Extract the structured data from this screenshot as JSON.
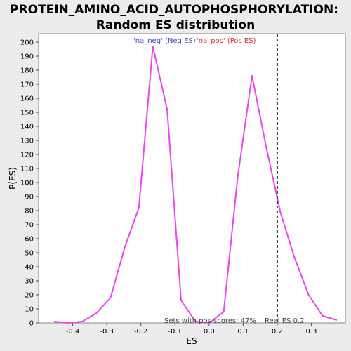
{
  "chart_data": {
    "type": "line",
    "title_line1": "PROTEIN_AMINO_ACID_AUTOPHOSPHORYLATION:",
    "title_line2": "Random ES distribution",
    "xlabel": "ES",
    "ylabel": "P(ES)",
    "xlim": [
      -0.5,
      0.4
    ],
    "ylim": [
      0,
      206
    ],
    "x_ticks": [
      -0.4,
      -0.3,
      -0.2,
      -0.1,
      0.0,
      0.1,
      0.2,
      0.3
    ],
    "x_tick_labels": [
      "-0.4",
      "-0.3",
      "-0.2",
      "-0.1",
      "0.0",
      "0.1",
      "0.2",
      "0.3"
    ],
    "y_ticks": [
      0,
      10,
      20,
      30,
      40,
      50,
      60,
      70,
      80,
      90,
      100,
      110,
      120,
      130,
      140,
      150,
      160,
      170,
      180,
      190,
      200
    ],
    "y_tick_labels": [
      "0",
      "10",
      "20",
      "30",
      "40",
      "50",
      "60",
      "70",
      "80",
      "90",
      "100",
      "110",
      "120",
      "130",
      "140",
      "150",
      "160",
      "170",
      "180",
      "190",
      "200"
    ],
    "legend": [
      {
        "label": "'na_neg' (Neg ES)",
        "color": "#4040dd"
      },
      {
        "label": "'na_pos' (Pos ES)",
        "color": "#dd3030"
      }
    ],
    "series": [
      {
        "color": "#ee44ee",
        "x": [
          -0.455,
          -0.413,
          -0.372,
          -0.33,
          -0.289,
          -0.247,
          -0.206,
          -0.165,
          -0.123,
          -0.082,
          -0.04,
          0.001,
          0.043,
          0.084,
          0.126,
          0.167,
          0.209,
          0.25,
          0.292,
          0.333,
          0.375
        ],
        "y": [
          1,
          0,
          1,
          7,
          18,
          54,
          82,
          197,
          152,
          16,
          1,
          0,
          8,
          104,
          176,
          126,
          79,
          47,
          20,
          5,
          2
        ]
      }
    ],
    "real_es": 0.2,
    "real_es_label": "Real ES 0.2",
    "annotation": "Sets with pos scores: 47%",
    "grid": false,
    "background": "#ffffff"
  }
}
